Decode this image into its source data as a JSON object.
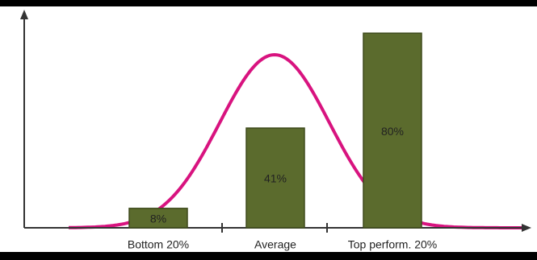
{
  "chart_data": {
    "type": "bar",
    "categories": [
      "Bottom 20%",
      "Average",
      "Top perform. 20%"
    ],
    "values": [
      8,
      41,
      80
    ],
    "value_labels": [
      "8%",
      "41%",
      "80%"
    ],
    "color": "#5b6b2d",
    "ylim": [
      0,
      89
    ]
  }
}
